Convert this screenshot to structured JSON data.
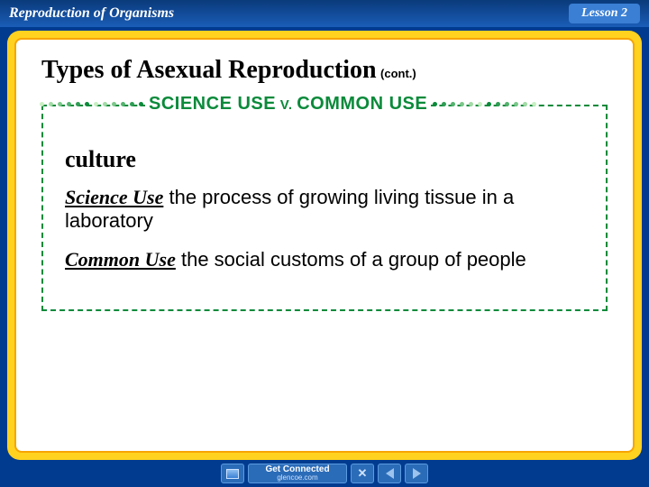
{
  "header": {
    "title": "Reproduction of Organisms",
    "lesson": "Lesson 2"
  },
  "slide": {
    "title": "Types of Asexual Reproduction",
    "cont": "(cont.)"
  },
  "vocab_box": {
    "banner_text_1": "SCIENCE USE",
    "banner_v": " V. ",
    "banner_text_2": "COMMON USE",
    "term": "culture",
    "defs": [
      {
        "lead": "Science Use",
        "body": " the process of growing living tissue in a laboratory"
      },
      {
        "lead": "Common Use",
        "body": " the social customs of a group of people"
      }
    ],
    "colors": {
      "border": "#0a8a3a",
      "dot_colors": [
        "#0a8a3a",
        "#2f9e55",
        "#55b36f",
        "#7cc78a",
        "#a3dba6",
        "#c9efc2"
      ]
    }
  },
  "footer": {
    "connect_label": "Get Connected",
    "connect_url": "glencoe.com"
  },
  "frame": {
    "outer_bg": "#ffd21f",
    "inner_bg": "#ffffff",
    "page_bg": "#003b8f"
  }
}
